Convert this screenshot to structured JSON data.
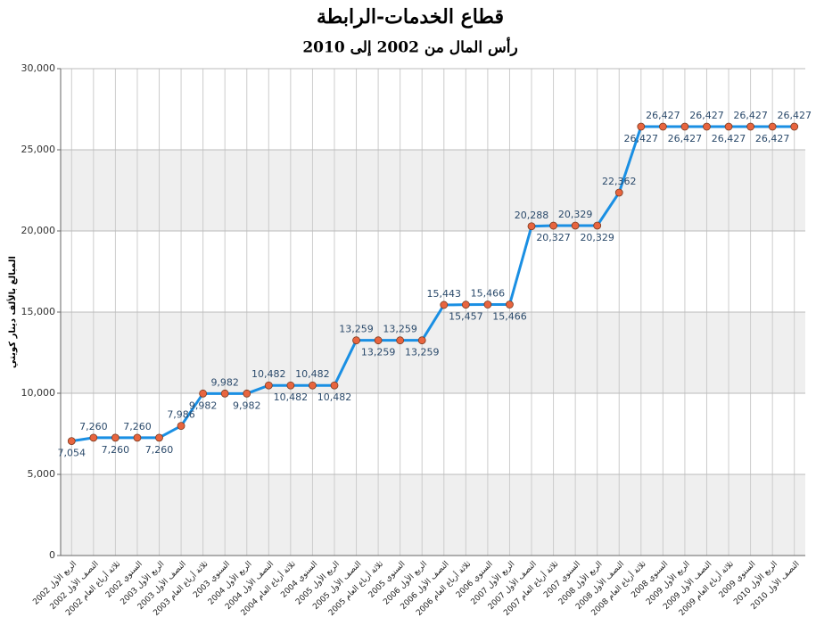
{
  "chart_data": {
    "type": "line",
    "title": "قطاع الخدمات-الرابطة",
    "subtitle": "رأس المال من 2002 إلى 2010",
    "y_label": "المبالغ بالألف دينار كويتي",
    "categories": [
      "الربع الأول 2002",
      "النصف الأول 2002",
      "ثلاثة أرباع العام 2002",
      "السنوي 2002",
      "الربع الأول 2003",
      "النصف الأول 2003",
      "ثلاثة أرباع العام 2003",
      "السنوي 2003",
      "الربع الأول 2004",
      "النصف الأول 2004",
      "ثلاثة أرباع العام 2004",
      "السنوي 2004",
      "الربع الأول 2005",
      "النصف الأول 2005",
      "ثلاثة أرباع العام 2005",
      "السنوي 2005",
      "الربع الأول 2006",
      "النصف الأول 2006",
      "ثلاثة أرباع العام 2006",
      "السنوي 2006",
      "الربع الأول 2007",
      "النصف الأول 2007",
      "ثلاثة أرباع العام 2007",
      "السنوي 2007",
      "الربع الأول 2008",
      "النصف الأول 2008",
      "ثلاثة أرباع العام 2008",
      "السنوي 2008",
      "الربع الأول 2009",
      "النصف الأول 2009",
      "ثلاثة أرباع العام 2009",
      "السنوي 2009",
      "الربع الأول 2010",
      "النصف الأول 2010"
    ],
    "values": [
      7054,
      7260,
      7260,
      7260,
      7260,
      7986,
      9982,
      9982,
      9982,
      10482,
      10482,
      10482,
      10482,
      13259,
      13259,
      13259,
      13259,
      15443,
      15457,
      15466,
      15466,
      20288,
      20327,
      20329,
      20329,
      22362,
      26427,
      26427,
      26427,
      26427,
      26427,
      26427,
      26427,
      26427
    ],
    "value_labels": [
      "7,054",
      "7,260",
      "7,260",
      "7,260",
      "7,260",
      "7,986",
      "9,982",
      "9,982",
      "9,982",
      "10,482",
      "10,482",
      "10,482",
      "10,482",
      "13,259",
      "13,259",
      "13,259",
      "13,259",
      "15,443",
      "15,457",
      "15,466",
      "15,466",
      "20,288",
      "20,327",
      "20,329",
      "20,329",
      "22,362",
      "26,427",
      "26,427",
      "26,427",
      "26,427",
      "26,427",
      "26,427",
      "26,427",
      "26,427"
    ],
    "color": "#1a8fe3",
    "marker_color": "#e8653f",
    "ylim": [
      0,
      30000
    ],
    "yticks": [
      0,
      {
        "value": 5000,
        "label": "5,000"
      },
      {
        "value": 10000,
        "label": "10,000"
      },
      {
        "value": 15000,
        "label": "15,000"
      },
      {
        "value": 20000,
        "label": "20,000"
      },
      {
        "value": 25000,
        "label": "25,000"
      },
      {
        "value": 30000,
        "label": "30,000"
      }
    ],
    "grid": true
  }
}
